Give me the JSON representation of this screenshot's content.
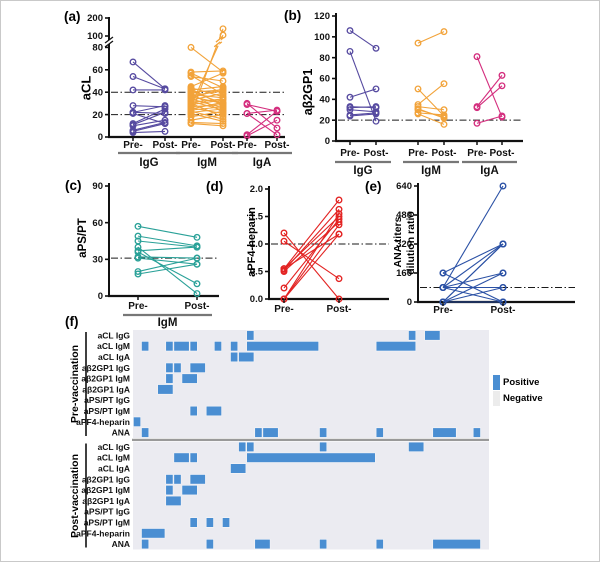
{
  "colors": {
    "purple": "#564aa0",
    "orange": "#f2a33a",
    "magenta": "#d42e7e",
    "teal": "#2aa198",
    "red": "#e32322",
    "blue": "#2b51a5",
    "heatmap_positive": "#4a8ed2",
    "heatmap_negative": "#ebebf1"
  },
  "chart_data": [
    {
      "panel": "a",
      "letter": "(a)",
      "type": "paired-scatter",
      "ylabel": "aCL",
      "axis_break": true,
      "yticks_lower": [
        0,
        20,
        40,
        60,
        80
      ],
      "yticks_upper": [
        100,
        200
      ],
      "thresholds": [
        20,
        40
      ],
      "xtick_labels": [
        "Pre-",
        "Post-"
      ],
      "groups": [
        {
          "label": "IgG",
          "color": "#564aa0",
          "pairs": [
            [
              67,
              43
            ],
            [
              54,
              43
            ],
            [
              42,
              42
            ],
            [
              28,
              27
            ],
            [
              22,
              28
            ],
            [
              22,
              21
            ],
            [
              21,
              12
            ],
            [
              12,
              25
            ],
            [
              11,
              22
            ],
            [
              10,
              15
            ],
            [
              6,
              13
            ],
            [
              5,
              12
            ],
            [
              4,
              5
            ]
          ]
        },
        {
          "label": "IgM",
          "color": "#f2a33a",
          "pairs": [
            [
              80,
              58
            ],
            [
              58,
              59
            ],
            [
              57,
              44
            ],
            [
              55,
              38
            ],
            [
              54,
              50
            ],
            [
              45,
              57
            ],
            [
              44,
              36
            ],
            [
              43,
              28
            ],
            [
              42,
              45
            ],
            [
              41,
              30
            ],
            [
              40,
              42
            ],
            [
              39,
              22
            ],
            [
              38,
              35
            ],
            [
              37,
              41
            ],
            [
              36,
              30
            ],
            [
              35,
              43
            ],
            [
              34,
              26
            ],
            [
              33,
              39
            ],
            [
              32,
              24
            ],
            [
              31,
              34
            ],
            [
              30,
              18
            ],
            [
              29,
              33
            ],
            [
              28,
              105
            ],
            [
              27,
              29
            ],
            [
              26,
              21
            ],
            [
              25,
              31
            ],
            [
              24,
              27
            ],
            [
              23,
              16
            ],
            [
              22,
              25
            ],
            [
              21,
              14
            ],
            [
              20,
              140
            ],
            [
              18,
              23
            ],
            [
              15,
              20
            ],
            [
              13,
              12
            ],
            [
              12,
              10
            ]
          ]
        },
        {
          "label": "IgA",
          "color": "#d42e7e",
          "pairs": [
            [
              30,
              8
            ],
            [
              29,
              23
            ],
            [
              21,
              24
            ],
            [
              21,
              2
            ],
            [
              2,
              23
            ],
            [
              1,
              15
            ]
          ]
        }
      ]
    },
    {
      "panel": "b",
      "letter": "(b)",
      "type": "paired-scatter",
      "ylabel": "aβ2GP1",
      "yticks": [
        0,
        20,
        40,
        60,
        80,
        100,
        120
      ],
      "ymax": 120,
      "thresholds": [
        20
      ],
      "xtick_labels": [
        "Pre-",
        "Post-"
      ],
      "groups": [
        {
          "label": "IgG",
          "color": "#564aa0",
          "pairs": [
            [
              106,
              89
            ],
            [
              86,
              19
            ],
            [
              42,
              50
            ],
            [
              33,
              32
            ],
            [
              32,
              33
            ],
            [
              30,
              28
            ],
            [
              25,
              27
            ],
            [
              24,
              26
            ]
          ]
        },
        {
          "label": "IgM",
          "color": "#f2a33a",
          "pairs": [
            [
              94,
              105
            ],
            [
              50,
              24
            ],
            [
              35,
              55
            ],
            [
              33,
              30
            ],
            [
              31,
              22
            ],
            [
              30,
              23
            ],
            [
              27,
              25
            ],
            [
              26,
              16
            ]
          ]
        },
        {
          "label": "IgA",
          "color": "#d42e7e",
          "pairs": [
            [
              81,
              23
            ],
            [
              33,
              63
            ],
            [
              32,
              53
            ],
            [
              17,
              24
            ]
          ]
        }
      ]
    },
    {
      "panel": "c",
      "letter": "(c)",
      "type": "paired-scatter",
      "ylabel": "aPS/PT",
      "yticks": [
        0,
        30,
        60,
        90
      ],
      "ymax": 90,
      "thresholds": [
        31
      ],
      "xtick_labels": [
        "Pre-",
        "Post-"
      ],
      "groups": [
        {
          "label": "IgM",
          "color": "#2aa198",
          "pairs": [
            [
              57,
              48
            ],
            [
              49,
              41
            ],
            [
              45,
              40
            ],
            [
              40,
              2
            ],
            [
              37,
              40
            ],
            [
              36,
              10
            ],
            [
              32,
              31
            ],
            [
              31,
              26
            ],
            [
              20,
              31
            ],
            [
              18,
              26
            ]
          ]
        }
      ]
    },
    {
      "panel": "d",
      "letter": "(d)",
      "type": "paired-scatter",
      "ylabel": "aPF4-heparin",
      "yticks": [
        0,
        0.5,
        1,
        1.5,
        2
      ],
      "ymax": 2,
      "decimals": 1,
      "thresholds": [
        1.0
      ],
      "xtick_labels": [
        "Pre-",
        "Post-"
      ],
      "groups": [
        {
          "label": "",
          "color": "#e32322",
          "pairs": [
            [
              1.2,
              0
            ],
            [
              1.05,
              0.37
            ],
            [
              0.55,
              1.8
            ],
            [
              0.55,
              1.5
            ],
            [
              0.55,
              1.18
            ],
            [
              0.52,
              1.63
            ],
            [
              0.5,
              1.4
            ],
            [
              0.2,
              1.45
            ],
            [
              0,
              1.55
            ],
            [
              0,
              1.35
            ],
            [
              0,
              1.18
            ]
          ]
        }
      ]
    },
    {
      "panel": "e",
      "letter": "(e)",
      "type": "paired-scatter",
      "ylabel": "ANA titers dilution ratio",
      "ylabel_lines": [
        "ANA titers",
        "dilution ratio"
      ],
      "yticks": [
        0,
        160,
        320,
        480,
        640
      ],
      "ymax": 640,
      "thresholds": [
        80
      ],
      "xtick_labels": [
        "Pre-",
        "Post-"
      ],
      "groups": [
        {
          "label": "",
          "color": "#2b51a5",
          "pairs": [
            [
              160,
              320
            ],
            [
              160,
              0
            ],
            [
              80,
              640
            ],
            [
              80,
              320
            ],
            [
              80,
              160
            ],
            [
              80,
              80
            ],
            [
              80,
              0
            ],
            [
              0,
              320
            ],
            [
              0,
              320
            ],
            [
              0,
              160
            ],
            [
              0,
              80
            ],
            [
              0,
              0
            ]
          ]
        }
      ]
    },
    {
      "panel": "f",
      "letter": "(f)",
      "type": "heatmap",
      "columns": 44,
      "positive_color": "#4a8ed2",
      "negative_color": "#ebebf1",
      "legend": {
        "positive": "Positive",
        "negative": "Negative"
      },
      "row_defs": [
        {
          "label": "aCL IgG",
          "color": "#8b28a8"
        },
        {
          "label": "aCL IgM",
          "color": "#8b28a8"
        },
        {
          "label": "aCL IgA",
          "color": "#8b28a8"
        },
        {
          "label": "aβ2GP1 IgG",
          "color": "#e2690b"
        },
        {
          "label": "aβ2GP1 IgM",
          "color": "#e2690b"
        },
        {
          "label": "aβ2GP1 IgA",
          "color": "#e2690b"
        },
        {
          "label": "aPS/PT IgG",
          "color": "#21a08e"
        },
        {
          "label": "aPS/PT IgM",
          "color": "#21a08e"
        },
        {
          "label": "aPF4-heparin",
          "color": "#e02424"
        },
        {
          "label": "ANA",
          "color": "#2b35a8"
        }
      ],
      "sections": [
        {
          "label": "Pre-vaccination",
          "segments": [
            [
              [
                14,
                14
              ],
              [
                34,
                34
              ],
              [
                36,
                37
              ]
            ],
            [
              [
                1,
                1
              ],
              [
                4,
                4
              ],
              [
                5,
                6
              ],
              [
                7,
                7
              ],
              [
                10,
                10
              ],
              [
                12,
                12
              ],
              [
                14,
                22
              ],
              [
                30,
                34
              ]
            ],
            [
              [
                12,
                12
              ],
              [
                13,
                14
              ]
            ],
            [
              [
                4,
                4
              ],
              [
                5,
                5
              ],
              [
                7,
                8
              ]
            ],
            [
              [
                4,
                4
              ],
              [
                6,
                7
              ]
            ],
            [
              [
                3,
                4
              ]
            ],
            [],
            [
              [
                7,
                7
              ],
              [
                9,
                10
              ]
            ],
            [
              [
                0,
                0
              ]
            ],
            [
              [
                1,
                1
              ],
              [
                15,
                15
              ],
              [
                16,
                17
              ],
              [
                23,
                23
              ],
              [
                30,
                30
              ],
              [
                37,
                39
              ],
              [
                42,
                42
              ]
            ]
          ]
        },
        {
          "label": "Post-vaccination",
          "segments": [
            [
              [
                13,
                13
              ],
              [
                14,
                14
              ],
              [
                23,
                23
              ],
              [
                34,
                35
              ]
            ],
            [
              [
                5,
                6
              ],
              [
                7,
                7
              ],
              [
                14,
                29
              ]
            ],
            [
              [
                12,
                13
              ]
            ],
            [
              [
                4,
                4
              ],
              [
                5,
                5
              ],
              [
                7,
                8
              ]
            ],
            [
              [
                4,
                4
              ],
              [
                6,
                7
              ]
            ],
            [
              [
                4,
                5
              ]
            ],
            [],
            [
              [
                7,
                7
              ],
              [
                9,
                9
              ],
              [
                11,
                11
              ]
            ],
            [
              [
                1,
                3
              ]
            ],
            [
              [
                1,
                1
              ],
              [
                9,
                9
              ],
              [
                15,
                16
              ],
              [
                23,
                23
              ],
              [
                30,
                30
              ],
              [
                37,
                42
              ]
            ]
          ]
        }
      ]
    }
  ]
}
